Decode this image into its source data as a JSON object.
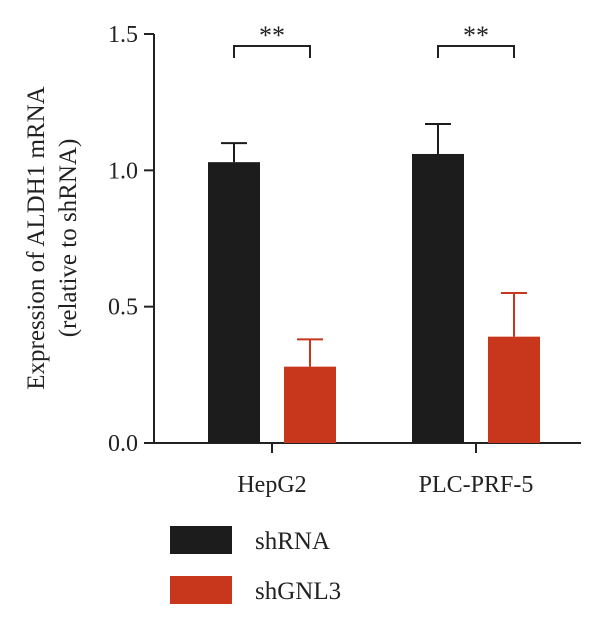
{
  "chart_data": {
    "type": "bar",
    "ylabel_line1": "Expression of ALDH1 mRNA",
    "ylabel_line2": "(relative to shRNA)",
    "xlabel": "",
    "ylim": [
      0,
      1.5
    ],
    "yticks": [
      "0.0",
      "0.5",
      "1.0",
      "1.5"
    ],
    "ytick_values": [
      0,
      0.5,
      1.0,
      1.5
    ],
    "categories": [
      "HepG2",
      "PLC-PRF-5"
    ],
    "series": [
      {
        "name": "shRNA",
        "color": "#1c1c1c",
        "values": [
          1.03,
          1.06
        ],
        "errors": [
          0.07,
          0.11
        ]
      },
      {
        "name": "shGNL3",
        "color": "#c8361b",
        "values": [
          0.28,
          0.39
        ],
        "errors": [
          0.1,
          0.16
        ]
      }
    ],
    "significance": [
      {
        "category_index": 0,
        "label": "**"
      },
      {
        "category_index": 1,
        "label": "**"
      }
    ],
    "grid": false,
    "legend_position": "bottom-left"
  }
}
